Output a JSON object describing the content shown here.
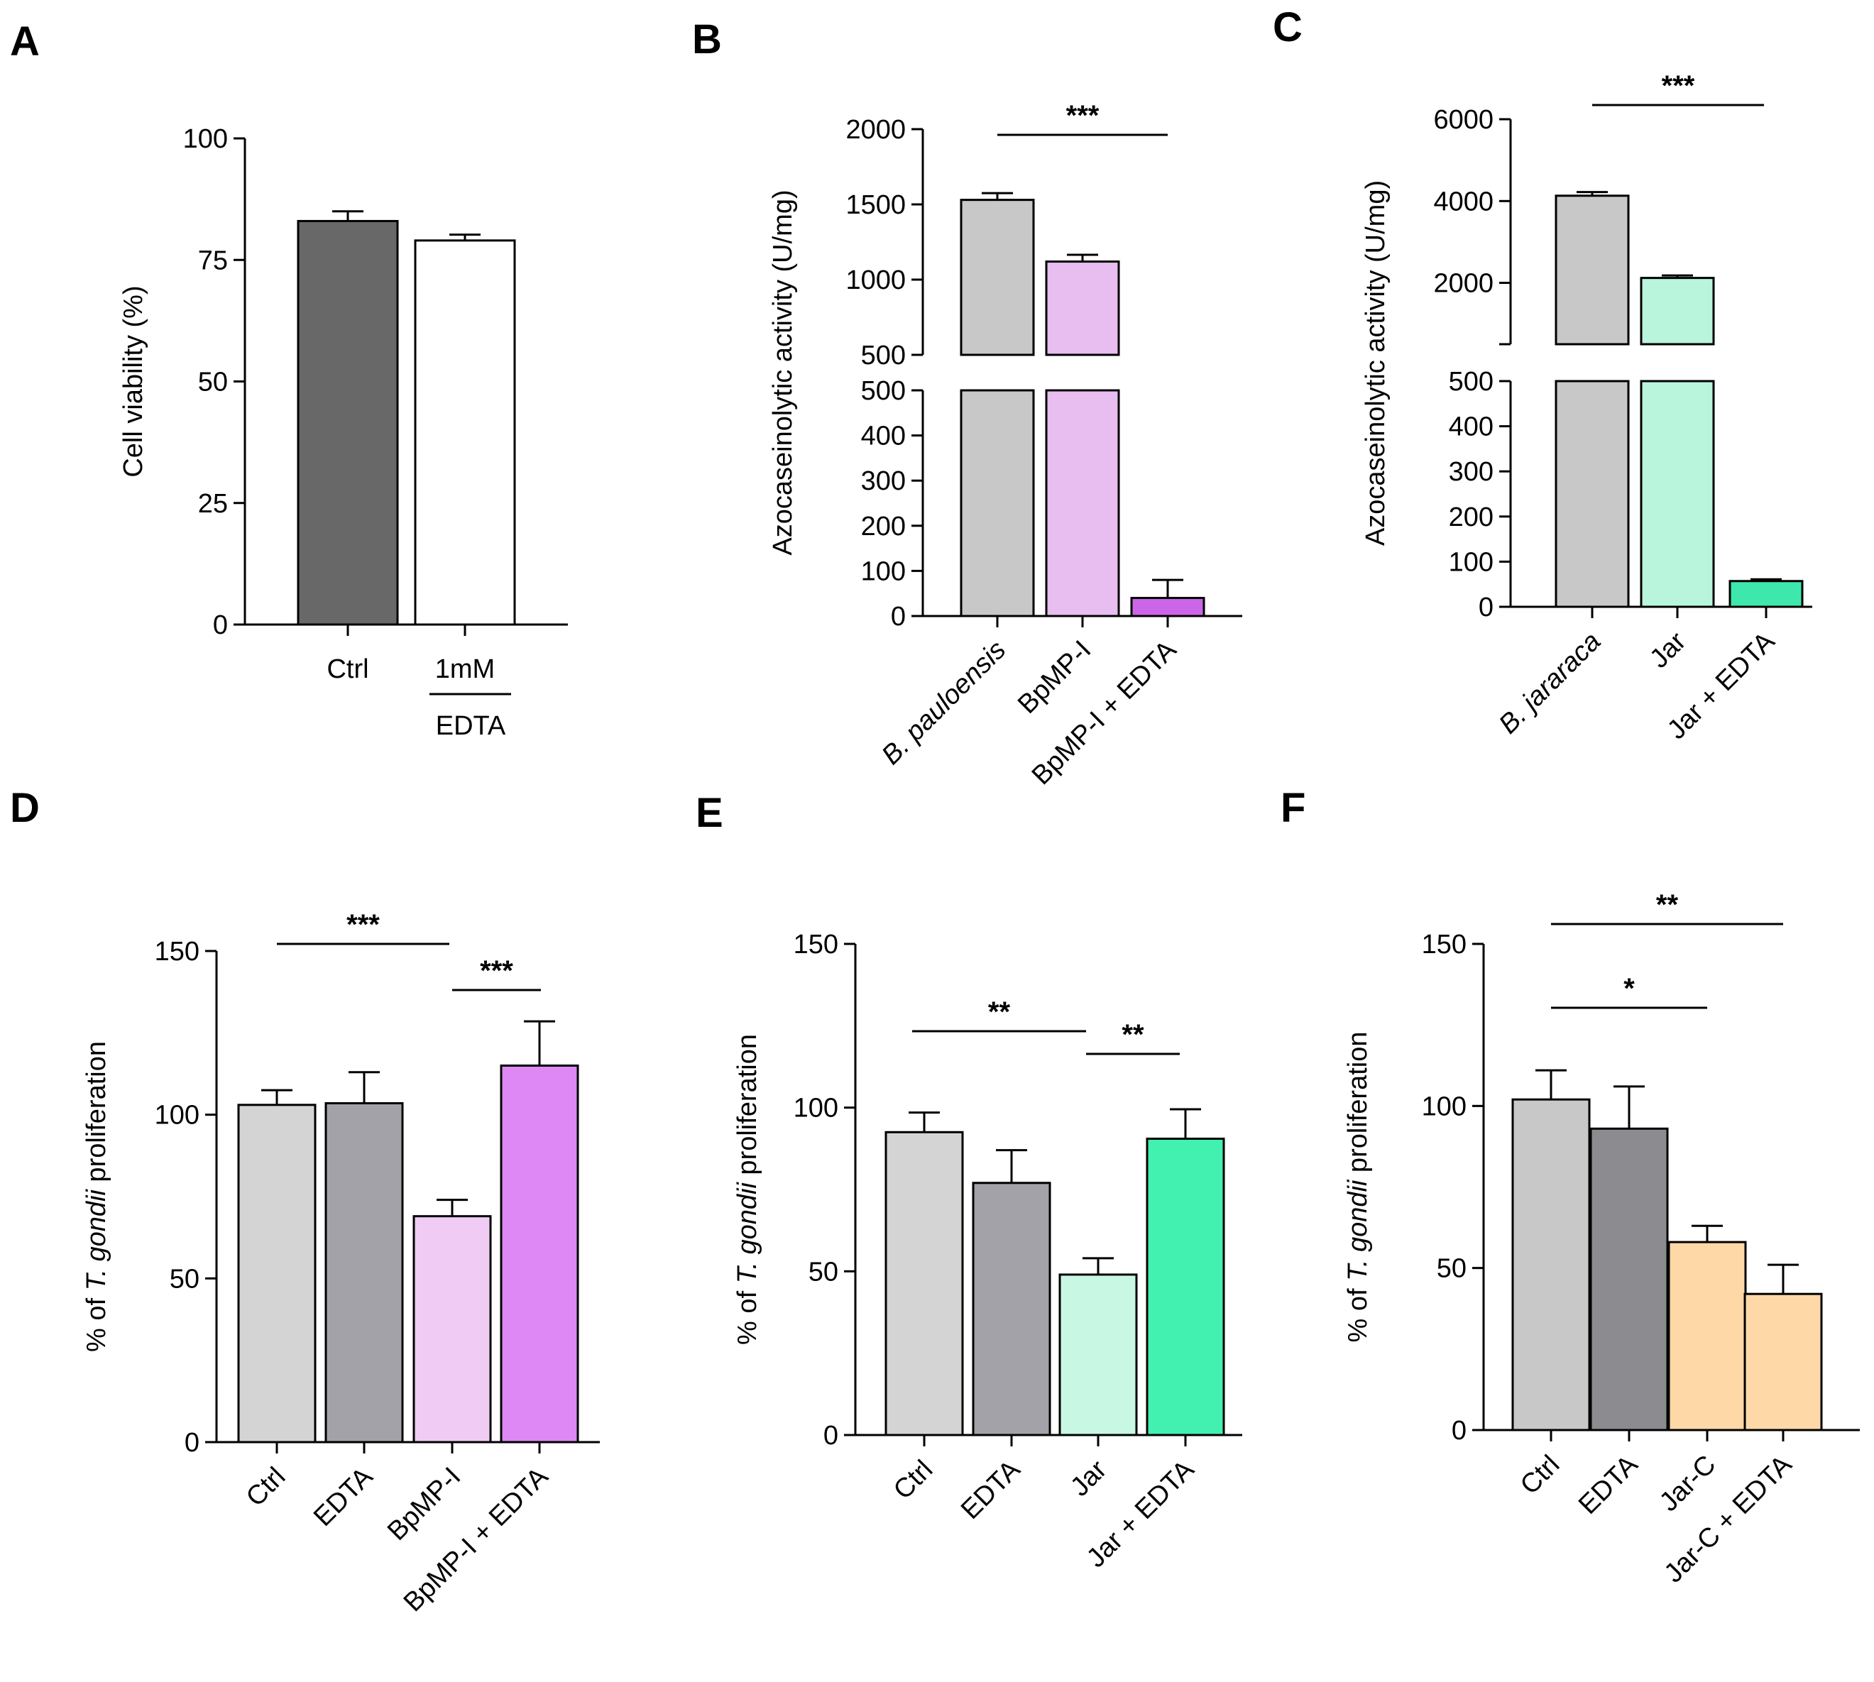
{
  "chart_data": [
    {
      "id": "A",
      "panel_label": "A",
      "type": "bar",
      "ylabel": "Cell viability (%)",
      "ylim": [
        0,
        100
      ],
      "yticks": [
        0,
        25,
        50,
        75,
        100
      ],
      "categories": [
        "Ctrl",
        "1mM"
      ],
      "group_label": "EDTA",
      "values": [
        83,
        79
      ],
      "errors": [
        2,
        1.2
      ],
      "colors": [
        "#686868",
        "#ffffff"
      ],
      "significance": []
    },
    {
      "id": "B",
      "panel_label": "B",
      "type": "bar",
      "ylabel": "Azocaseinolytic activity (U/mg)",
      "broken_axis": true,
      "lower_ylim": [
        0,
        500
      ],
      "upper_ylim": [
        500,
        2000
      ],
      "lower_yticks": [
        0,
        100,
        200,
        300,
        400,
        500
      ],
      "upper_yticks": [
        500,
        1000,
        1500,
        2000
      ],
      "categories": [
        "B. pauloensis",
        "BpMP-I",
        "BpMP-I + EDTA"
      ],
      "italic_categories": [
        0
      ],
      "values": [
        1530,
        1120,
        40
      ],
      "errors": [
        45,
        45,
        40
      ],
      "colors": [
        "#c8c8c8",
        "#e8bdf0",
        "#cc66e8"
      ],
      "significance": [
        {
          "from": 0,
          "to": 2,
          "label": "***"
        }
      ]
    },
    {
      "id": "C",
      "panel_label": "C",
      "type": "bar",
      "ylabel": "Azocaseinolytic activity (U/mg)",
      "broken_axis": true,
      "lower_ylim": [
        0,
        500
      ],
      "upper_ylim": [
        500,
        6000
      ],
      "lower_yticks": [
        0,
        100,
        200,
        300,
        400,
        500
      ],
      "upper_yticks": [
        2000,
        4000,
        6000
      ],
      "categories": [
        "B. jararaca",
        "Jar",
        "Jar + EDTA"
      ],
      "italic_categories": [
        0
      ],
      "values": [
        4130,
        2120,
        57
      ],
      "errors": [
        90,
        60,
        4
      ],
      "colors": [
        "#c8c8c8",
        "#b8f5dc",
        "#3ee8ac"
      ],
      "significance": [
        {
          "from": 0,
          "to": 2,
          "label": "***"
        }
      ]
    },
    {
      "id": "D",
      "panel_label": "D",
      "type": "bar",
      "ylabel_parts": [
        "% of ",
        "T. gondii",
        " proliferation"
      ],
      "ylim": [
        0,
        150
      ],
      "yticks": [
        0,
        50,
        100,
        150
      ],
      "categories": [
        "Ctrl",
        "EDTA",
        "BpMP-I",
        "BpMP-I + EDTA"
      ],
      "values": [
        103,
        103.5,
        69,
        115
      ],
      "errors": [
        4.5,
        9.5,
        5,
        13.5
      ],
      "colors": [
        "#d4d4d4",
        "#a3a2a8",
        "#f0ccf5",
        "#dd88f5"
      ],
      "significance": [
        {
          "from": 0,
          "to": 2,
          "label": "***"
        },
        {
          "from": 2,
          "to": 3,
          "label": "***"
        }
      ]
    },
    {
      "id": "E",
      "panel_label": "E",
      "type": "bar",
      "ylabel_parts": [
        "% of ",
        "T. gondii",
        " proliferation"
      ],
      "ylim": [
        0,
        150
      ],
      "yticks": [
        0,
        50,
        100,
        150
      ],
      "categories": [
        "Ctrl",
        "EDTA",
        "Jar",
        "Jar + EDTA"
      ],
      "values": [
        92.5,
        77,
        49,
        90.5
      ],
      "errors": [
        6,
        10,
        5,
        9
      ],
      "colors": [
        "#d4d4d4",
        "#a3a2a8",
        "#c8f7e4",
        "#42f0b0"
      ],
      "significance": [
        {
          "from": 0,
          "to": 2,
          "label": "**"
        },
        {
          "from": 2,
          "to": 3,
          "label": "**"
        }
      ]
    },
    {
      "id": "F",
      "panel_label": "F",
      "type": "bar",
      "ylabel_parts": [
        "% of ",
        "T. gondii",
        " proliferation"
      ],
      "ylim": [
        0,
        150
      ],
      "yticks": [
        0,
        50,
        100,
        150
      ],
      "categories": [
        "Ctrl",
        "EDTA",
        "Jar-C",
        "Jar-C + EDTA"
      ],
      "values": [
        102,
        93,
        58,
        42
      ],
      "errors": [
        9,
        13,
        5,
        9
      ],
      "colors": [
        "#c8c8c8",
        "#8c8b90",
        "#ffd8a8",
        "#ffd8a8"
      ],
      "significance": [
        {
          "from": 0,
          "to": 2,
          "label": "*"
        },
        {
          "from": 0,
          "to": 3,
          "label": "**"
        }
      ]
    }
  ]
}
